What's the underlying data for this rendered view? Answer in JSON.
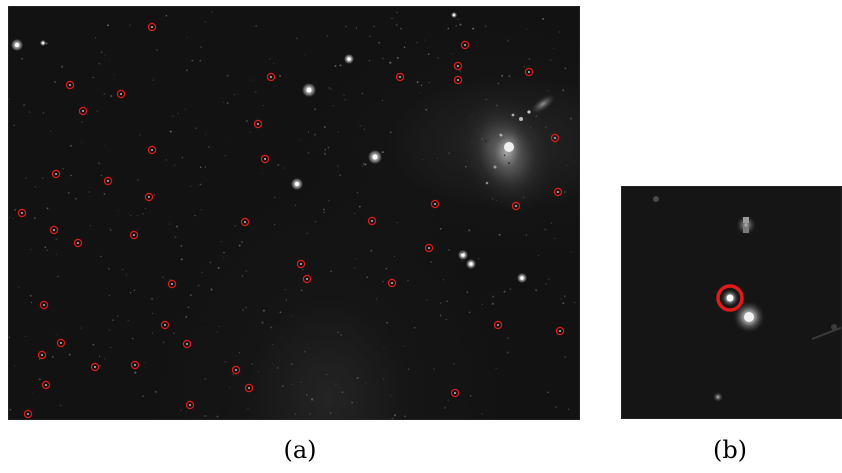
{
  "panels": [
    {
      "id": "a",
      "caption": "(a)"
    },
    {
      "id": "b",
      "caption": "(b)"
    }
  ],
  "colors": {
    "marker": "#e11a1a",
    "background": "#121212",
    "star": "#ffffff"
  }
}
